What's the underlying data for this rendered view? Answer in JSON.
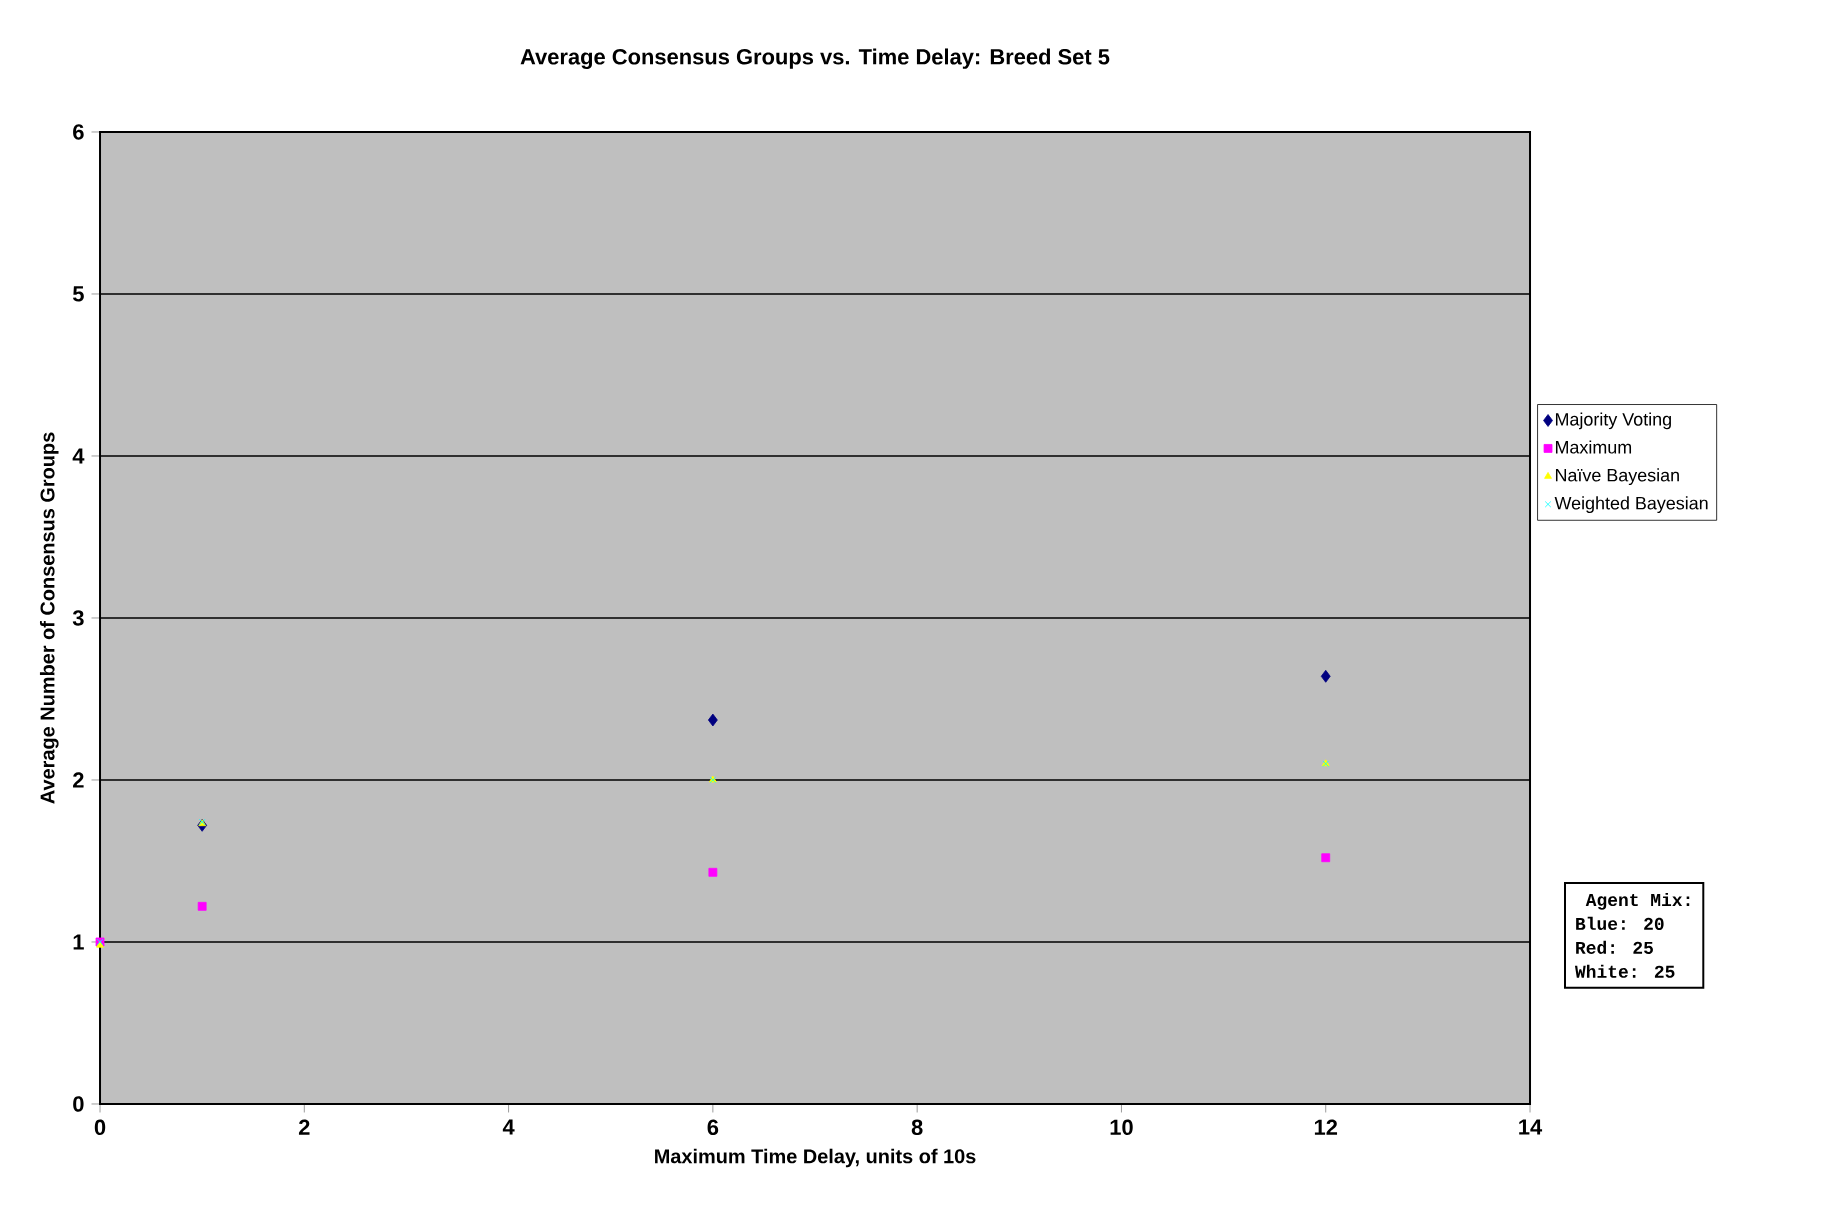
{
  "chart_data": {
    "type": "scatter",
    "title": "Average Consensus Groups vs. Time Delay: Breed Set 5",
    "xlabel": "Maximum Time Delay, units of 10s",
    "ylabel": "Average Number of Consensus Groups",
    "x": [
      0,
      1,
      6,
      12
    ],
    "series": [
      {
        "name": "Majority Voting",
        "color": "#000080",
        "marker": "diamond",
        "values": [
          null,
          1.72,
          2.37,
          2.64
        ]
      },
      {
        "name": "Maximum",
        "color": "#ff00ff",
        "marker": "square",
        "values": [
          1.0,
          1.22,
          1.43,
          1.52
        ]
      },
      {
        "name": "Naïve Bayesian",
        "color": "#ffff00",
        "marker": "triangle",
        "values": [
          0.98,
          1.73,
          2.0,
          2.1
        ]
      },
      {
        "name": "Weighted Bayesian",
        "color": "#00ffff",
        "marker": "cross",
        "values": [
          1.0,
          1.74,
          2.0,
          2.1
        ]
      }
    ],
    "xlim": [
      0,
      14
    ],
    "xticks": [
      0,
      2,
      4,
      6,
      8,
      10,
      12,
      14
    ],
    "ylim": [
      0,
      6
    ],
    "yticks": [
      0,
      1,
      2,
      3,
      4,
      5,
      6
    ],
    "grid": "y",
    "legend": "right",
    "annotations": [
      "Agent Mix:",
      "Blue:    20",
      "Red:     25",
      "White:   25"
    ]
  }
}
